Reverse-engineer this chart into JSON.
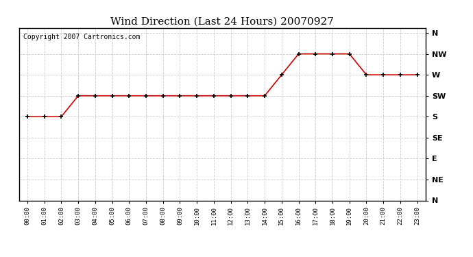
{
  "title": "Wind Direction (Last 24 Hours) 20070927",
  "copyright": "Copyright 2007 Cartronics.com",
  "background_color": "#ffffff",
  "plot_bg_color": "#ffffff",
  "grid_color": "#cccccc",
  "line_color": "#cc0000",
  "marker_color": "#000000",
  "hours": [
    0,
    1,
    2,
    3,
    4,
    5,
    6,
    7,
    8,
    9,
    10,
    11,
    12,
    13,
    14,
    15,
    16,
    17,
    18,
    19,
    20,
    21,
    22,
    23
  ],
  "wind_directions": [
    180,
    180,
    180,
    225,
    225,
    225,
    225,
    225,
    225,
    225,
    225,
    225,
    225,
    225,
    225,
    270,
    315,
    315,
    315,
    315,
    270,
    270,
    270,
    270
  ],
  "ytick_labels": [
    "N",
    "NW",
    "W",
    "SW",
    "S",
    "SE",
    "E",
    "NE",
    "N"
  ],
  "ytick_values": [
    360,
    315,
    270,
    225,
    180,
    135,
    90,
    45,
    0
  ],
  "ylim": [
    0,
    370
  ],
  "xlim": [
    -0.5,
    23.5
  ],
  "xtick_labels": [
    "00:00",
    "01:00",
    "02:00",
    "03:00",
    "04:00",
    "05:00",
    "06:00",
    "07:00",
    "08:00",
    "09:00",
    "10:00",
    "11:00",
    "12:00",
    "13:00",
    "14:00",
    "15:00",
    "16:00",
    "17:00",
    "18:00",
    "19:00",
    "20:00",
    "21:00",
    "22:00",
    "23:00"
  ],
  "title_fontsize": 11,
  "copyright_fontsize": 7
}
